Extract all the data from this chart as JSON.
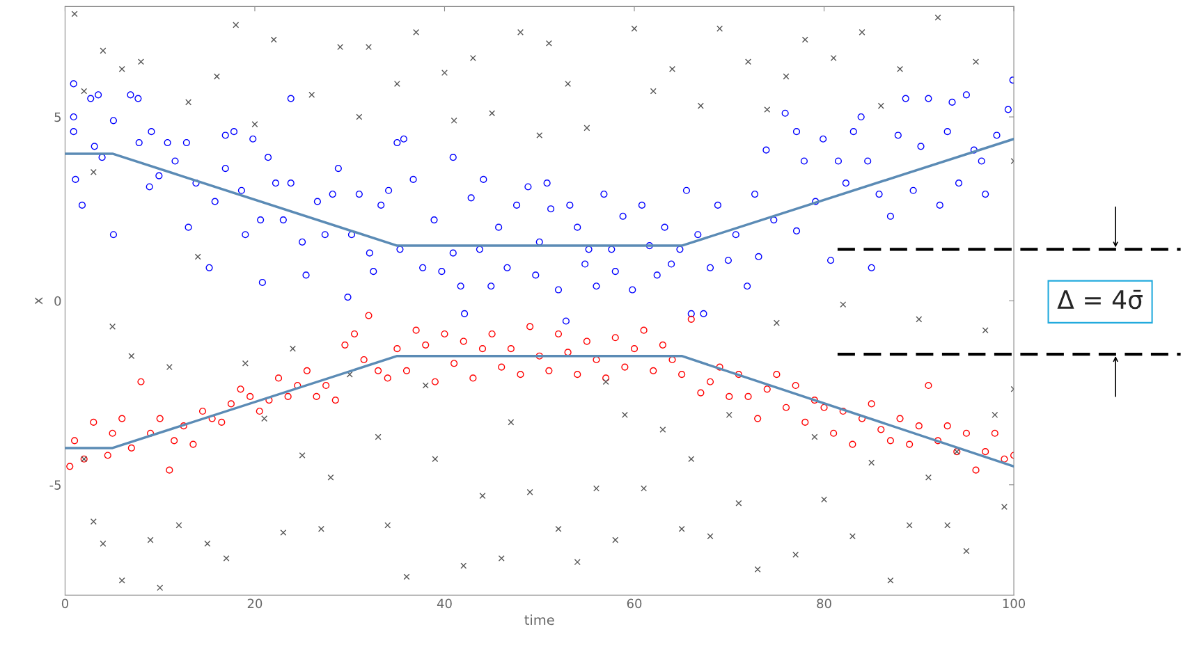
{
  "chart_data": {
    "type": "scatter",
    "xlabel": "time",
    "ylabel": "x",
    "xlim": [
      0,
      100
    ],
    "ylim": [
      -8,
      8
    ],
    "xticks": [
      0,
      20,
      40,
      60,
      80,
      100
    ],
    "yticks": [
      -5,
      0,
      5
    ],
    "grid": false,
    "legend": false,
    "series": [
      {
        "marker": "circle",
        "color": "#0000ff",
        "x": [
          0.9,
          0.9,
          0.9,
          1.1,
          1.8,
          2.7,
          3.1,
          3.5,
          3.9,
          5.1,
          5.1,
          6.9,
          7.7,
          7.8,
          8.9,
          9.1,
          9.9,
          10.8,
          11.6,
          12.8,
          13.0,
          13.8,
          15.2,
          15.8,
          16.9,
          16.9,
          17.8,
          18.6,
          19.0,
          19.8,
          20.6,
          20.8,
          21.4,
          22.2,
          23.0,
          23.8,
          23.8,
          25.0,
          25.4,
          26.6,
          27.4,
          28.2,
          28.8,
          29.8,
          30.2,
          31.0,
          32.1,
          32.5,
          33.3,
          34.1,
          35.0,
          35.3,
          35.7,
          36.7,
          37.7,
          38.9,
          39.7,
          40.9,
          40.9,
          41.7,
          42.1,
          42.8,
          43.7,
          44.1,
          44.9,
          45.7,
          46.6,
          47.6,
          48.8,
          49.6,
          50.0,
          50.8,
          51.2,
          52.0,
          52.8,
          53.2,
          54.0,
          54.8,
          55.2,
          56.0,
          56.8,
          57.6,
          58.0,
          58.8,
          59.8,
          60.8,
          61.6,
          62.4,
          63.2,
          63.9,
          64.8,
          65.5,
          66.0,
          66.7,
          67.3,
          68.0,
          68.8,
          69.9,
          70.7,
          71.9,
          72.7,
          73.1,
          73.9,
          74.7,
          75.9,
          77.1,
          77.1,
          77.9,
          79.1,
          79.9,
          80.7,
          81.5,
          82.3,
          83.1,
          83.9,
          84.6,
          85.0,
          85.8,
          87.0,
          87.8,
          88.6,
          89.4,
          90.2,
          91.0,
          92.2,
          93.0,
          93.5,
          94.2,
          95.0,
          95.8,
          96.6,
          97.0,
          98.2,
          99.4,
          99.9
        ],
        "values": [
          5.9,
          5.0,
          4.6,
          3.3,
          2.6,
          5.5,
          4.2,
          5.6,
          3.9,
          4.9,
          1.8,
          5.6,
          5.5,
          4.3,
          3.1,
          4.6,
          3.4,
          4.3,
          3.8,
          4.3,
          2.0,
          3.2,
          0.9,
          2.7,
          4.5,
          3.6,
          4.6,
          3.0,
          1.8,
          4.4,
          2.2,
          0.5,
          3.9,
          3.2,
          2.2,
          5.5,
          3.2,
          1.6,
          0.7,
          2.7,
          1.8,
          2.9,
          3.6,
          0.1,
          1.8,
          2.9,
          1.3,
          0.8,
          2.6,
          3.0,
          4.3,
          1.4,
          4.4,
          3.3,
          0.9,
          2.2,
          0.8,
          3.9,
          1.3,
          0.4,
          -0.35,
          2.8,
          1.4,
          3.3,
          0.4,
          2.0,
          0.9,
          2.6,
          3.1,
          0.7,
          1.6,
          3.2,
          2.5,
          0.3,
          -0.55,
          2.6,
          2.0,
          1.0,
          1.4,
          0.4,
          2.9,
          1.4,
          0.8,
          2.3,
          0.3,
          2.6,
          1.5,
          0.7,
          2.0,
          1.0,
          1.4,
          3.0,
          -0.35,
          1.8,
          -0.35,
          0.9,
          2.6,
          1.1,
          1.8,
          0.4,
          2.9,
          1.2,
          4.1,
          2.2,
          5.1,
          4.6,
          1.9,
          3.8,
          2.7,
          4.4,
          1.1,
          3.8,
          3.2,
          4.6,
          5.0,
          3.8,
          0.9,
          2.9,
          2.3,
          4.5,
          5.5,
          3.0,
          4.2,
          5.5,
          2.6,
          4.6,
          5.4,
          3.2,
          5.6,
          4.1,
          3.8,
          2.9,
          4.5,
          5.2,
          6.0
        ]
      },
      {
        "marker": "circle",
        "color": "#ff0000",
        "x": [
          0.5,
          1,
          2,
          3,
          4.5,
          5,
          6,
          7,
          8,
          9,
          10,
          11,
          11.5,
          12.5,
          13.5,
          14.5,
          15.5,
          16.5,
          17.5,
          18.5,
          19.5,
          20.5,
          21.5,
          22.5,
          23.5,
          24.5,
          25.5,
          26.5,
          27.5,
          28.5,
          29.5,
          30.5,
          31.5,
          32,
          33,
          34,
          35,
          36,
          37,
          38,
          39,
          40,
          41,
          42,
          43,
          44,
          45,
          46,
          47,
          48,
          49,
          50,
          51,
          52,
          53,
          54,
          55,
          56,
          57,
          58,
          59,
          60,
          61,
          62,
          63,
          64,
          65,
          66,
          67,
          68,
          69,
          70,
          71,
          72,
          73,
          74,
          75,
          76,
          77,
          78,
          79,
          80,
          81,
          82,
          83,
          84,
          85,
          86,
          87,
          88,
          89,
          90,
          91,
          92,
          93,
          94,
          95,
          96,
          97,
          98,
          99,
          100
        ],
        "values": [
          -4.5,
          -3.8,
          -4.3,
          -3.3,
          -4.2,
          -3.6,
          -3.2,
          -4.0,
          -2.2,
          -3.6,
          -3.2,
          -4.6,
          -3.8,
          -3.4,
          -3.9,
          -3.0,
          -3.2,
          -3.3,
          -2.8,
          -2.4,
          -2.6,
          -3.0,
          -2.7,
          -2.1,
          -2.6,
          -2.3,
          -1.9,
          -2.6,
          -2.3,
          -2.7,
          -1.2,
          -0.9,
          -1.6,
          -0.4,
          -1.9,
          -2.1,
          -1.3,
          -1.9,
          -0.8,
          -1.2,
          -2.2,
          -0.9,
          -1.7,
          -1.1,
          -2.1,
          -1.3,
          -0.9,
          -1.8,
          -1.3,
          -2.0,
          -0.7,
          -1.5,
          -1.9,
          -0.9,
          -1.4,
          -2.0,
          -1.1,
          -1.6,
          -2.1,
          -1.0,
          -1.8,
          -1.3,
          -0.8,
          -1.9,
          -1.2,
          -1.6,
          -2.0,
          -0.5,
          -2.5,
          -2.2,
          -1.8,
          -2.6,
          -2.0,
          -2.6,
          -3.2,
          -2.4,
          -2.0,
          -2.9,
          -2.3,
          -3.3,
          -2.7,
          -2.9,
          -3.6,
          -3.0,
          -3.9,
          -3.2,
          -2.8,
          -3.5,
          -3.8,
          -3.2,
          -3.9,
          -3.4,
          -2.3,
          -3.8,
          -3.4,
          -4.1,
          -3.6,
          -4.6,
          -4.1,
          -3.6,
          -4.3,
          -4.2
        ]
      },
      {
        "marker": "cross",
        "color": "#555555",
        "x": [
          1,
          2,
          3,
          4,
          5,
          6,
          2,
          3,
          4,
          6,
          7,
          8,
          9,
          10,
          11,
          12,
          13,
          14,
          15,
          16,
          17,
          18,
          19,
          20,
          21,
          22,
          23,
          24,
          25,
          26,
          27,
          28,
          29,
          30,
          31,
          32,
          33,
          34,
          35,
          36,
          37,
          38,
          39,
          40,
          41,
          42,
          43,
          44,
          45,
          46,
          47,
          48,
          49,
          50,
          51,
          52,
          53,
          54,
          55,
          56,
          57,
          58,
          59,
          60,
          61,
          62,
          63,
          64,
          65,
          66,
          67,
          68,
          69,
          70,
          71,
          72,
          73,
          74,
          75,
          76,
          77,
          78,
          79,
          80,
          81,
          82,
          83,
          84,
          85,
          86,
          87,
          88,
          89,
          90,
          91,
          92,
          93,
          94,
          95,
          96,
          97,
          98,
          99,
          100,
          100
        ],
        "values": [
          7.8,
          5.7,
          3.5,
          6.8,
          -0.7,
          6.3,
          -4.3,
          -6.0,
          -6.6,
          -7.6,
          -1.5,
          6.5,
          -6.5,
          -7.8,
          -1.8,
          -6.1,
          5.4,
          1.2,
          -6.6,
          6.1,
          -7.0,
          7.5,
          -1.7,
          4.8,
          -3.2,
          7.1,
          -6.3,
          -1.3,
          -4.2,
          5.6,
          -6.2,
          -4.8,
          6.9,
          -2.0,
          5.0,
          6.9,
          -3.7,
          -6.1,
          5.9,
          -7.5,
          7.3,
          -2.3,
          -4.3,
          6.2,
          4.9,
          -7.2,
          6.6,
          -5.3,
          5.1,
          -7.0,
          -3.3,
          7.3,
          -5.2,
          4.5,
          7.0,
          -6.2,
          5.9,
          -7.1,
          4.7,
          -5.1,
          -2.2,
          -6.5,
          -3.1,
          7.4,
          -5.1,
          5.7,
          -3.5,
          6.3,
          -6.2,
          -4.3,
          5.3,
          -6.4,
          7.4,
          -3.1,
          -5.5,
          6.5,
          -7.3,
          5.2,
          -0.6,
          6.1,
          -6.9,
          7.1,
          -3.7,
          -5.4,
          6.6,
          -0.1,
          -6.4,
          7.3,
          -4.4,
          5.3,
          -7.6,
          6.3,
          -6.1,
          -0.5,
          -4.8,
          7.7,
          -6.1,
          -4.1,
          -6.8,
          6.5,
          -0.8,
          -3.1,
          -5.6,
          3.8,
          -2.4
        ]
      },
      {
        "type": "line",
        "marker": "none",
        "color": "#5b8bb5",
        "x": [
          0,
          5,
          35,
          65,
          100
        ],
        "values": [
          4,
          4,
          1.5,
          1.5,
          4.4
        ]
      },
      {
        "type": "line",
        "marker": "none",
        "color": "#5b8bb5",
        "x": [
          0,
          5,
          35,
          65,
          100
        ],
        "values": [
          -4,
          -4,
          -1.5,
          -1.5,
          -4.5
        ]
      }
    ],
    "ref_lines": [
      {
        "axis": "y",
        "value": 1.4,
        "label": null,
        "color": "#000000",
        "line_style": "dashed"
      },
      {
        "axis": "y",
        "value": -1.45,
        "label": null,
        "color": "#000000",
        "line_style": "dashed"
      }
    ],
    "annotations": [
      "Δ = 4σ̄"
    ]
  }
}
